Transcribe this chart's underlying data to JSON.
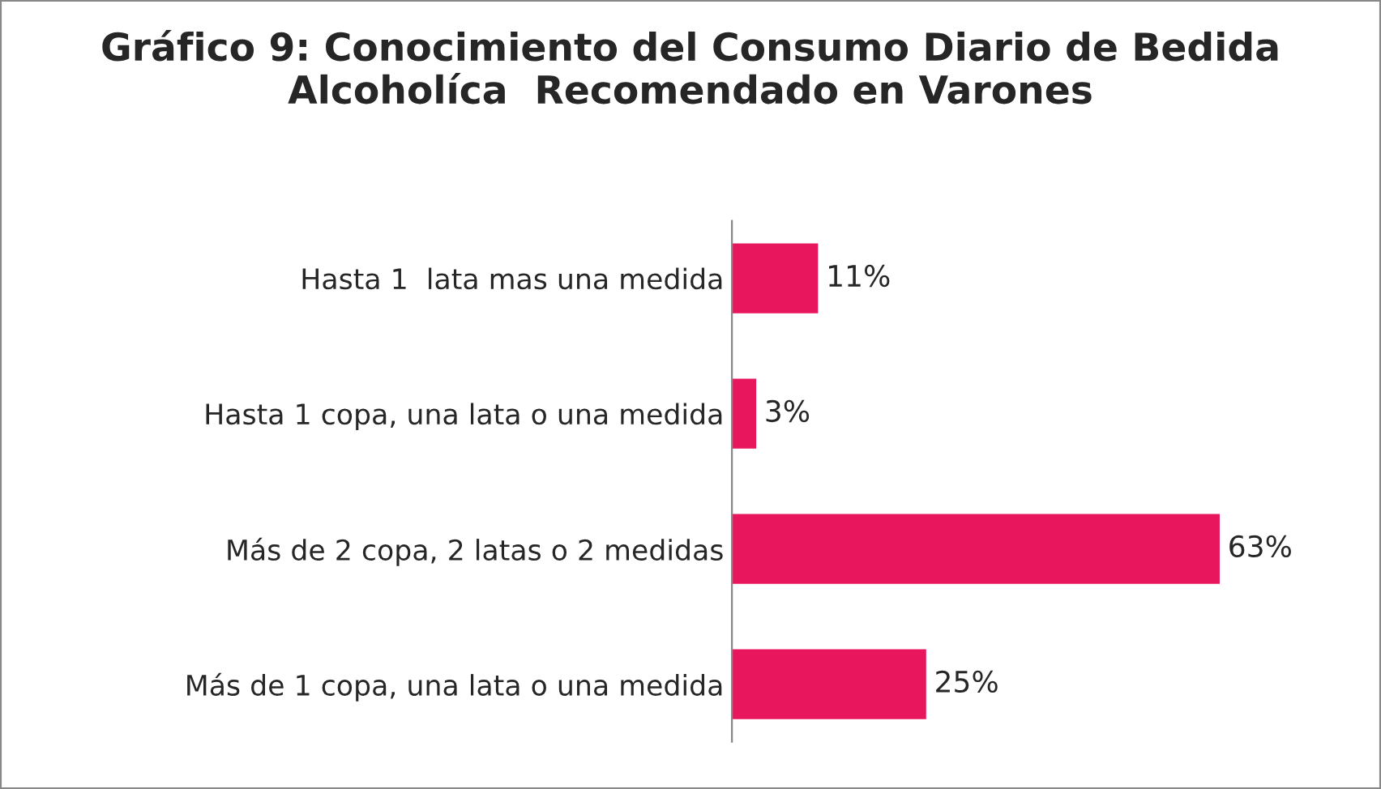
{
  "chart_data": {
    "type": "bar",
    "orientation": "horizontal",
    "title": "Gráfico 9: Conocimiento del Consumo Diario de Bedida Alcoholíca  Recomendado en Varones",
    "categories": [
      "Hasta 1  lata mas una medida",
      "Hasta 1 copa, una lata o una medida",
      "Más de 2 copa, 2 latas o 2 medidas",
      "Más de 1 copa, una lata o una medida"
    ],
    "values": [
      11,
      3,
      63,
      25
    ],
    "value_labels": [
      "11%",
      "3%",
      "63%",
      "25%"
    ],
    "color": "#e8175d",
    "grid": false,
    "legend": false
  }
}
